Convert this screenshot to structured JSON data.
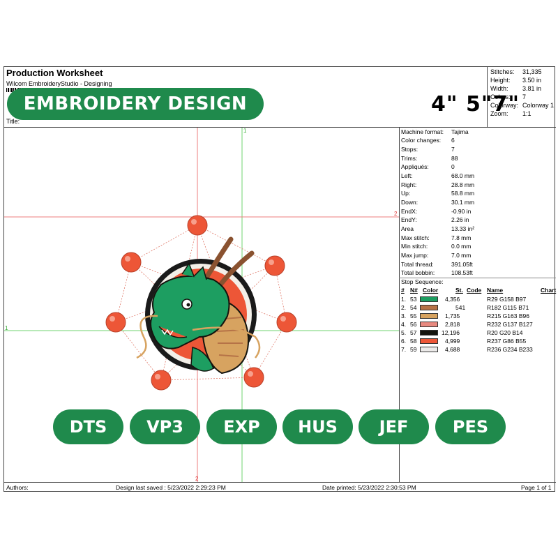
{
  "header": {
    "title": "Production Worksheet",
    "subtitle": "Wilcom EmbroideryStudio - Designing",
    "title_label": "Title:"
  },
  "banner": {
    "text": "EMBROIDERY DESIGN",
    "sizes": "4\" 5\"7\"",
    "color": "#1f8a4c"
  },
  "stats": [
    {
      "label": "Stitches:",
      "value": "31,335"
    },
    {
      "label": "Height:",
      "value": "3.50 in"
    },
    {
      "label": "Width:",
      "value": "3.81 in"
    },
    {
      "label": "Colors:",
      "value": "7"
    },
    {
      "label": "Colorway:",
      "value": "Colorway 1"
    },
    {
      "label": "Zoom:",
      "value": "1:1"
    }
  ],
  "machine_info": [
    {
      "label": "Machine format:",
      "value": "Tajima"
    },
    {
      "label": "Color changes:",
      "value": "6"
    },
    {
      "label": "Stops:",
      "value": "7"
    },
    {
      "label": "Trims:",
      "value": "88"
    },
    {
      "label": "Appliqués:",
      "value": "0"
    },
    {
      "label": "Left:",
      "value": "68.0 mm"
    },
    {
      "label": "Right:",
      "value": "28.8 mm"
    },
    {
      "label": "Up:",
      "value": "58.8 mm"
    },
    {
      "label": "Down:",
      "value": "30.1 mm"
    },
    {
      "label": "EndX:",
      "value": "-0.90 in"
    },
    {
      "label": "EndY:",
      "value": "2.26 in"
    },
    {
      "label": "Area",
      "value": "13.33 in²"
    },
    {
      "label": "Max stitch:",
      "value": "7.8 mm"
    },
    {
      "label": "Min stitch:",
      "value": "0.0 mm"
    },
    {
      "label": "Max jump:",
      "value": "7.0 mm"
    },
    {
      "label": "Total thread:",
      "value": "391.05ft"
    },
    {
      "label": "Total bobbin:",
      "value": "108.53ft"
    }
  ],
  "stop_sequence": {
    "title": "Stop Sequence:",
    "headers": {
      "num": "#",
      "n": "N#",
      "color": "Color",
      "st": "St.",
      "code": "Code",
      "name": "Name",
      "chart": "Chart"
    },
    "rows": [
      {
        "idx": "1.",
        "n": "53",
        "color": "#1d9e61",
        "st": "4,356",
        "name": "R29 G158 B97"
      },
      {
        "idx": "2.",
        "n": "54",
        "color": "#b67347",
        "st": "541",
        "name": "R182 G115 B71"
      },
      {
        "idx": "3.",
        "n": "55",
        "color": "#d7a360",
        "st": "1,735",
        "name": "R215 G163 B96"
      },
      {
        "idx": "4.",
        "n": "56",
        "color": "#e8897f",
        "st": "2,818",
        "name": "R232 G137 B127"
      },
      {
        "idx": "5.",
        "n": "57",
        "color": "#14140e",
        "st": "12,196",
        "name": "R20 G20 B14"
      },
      {
        "idx": "6.",
        "n": "58",
        "color": "#ed5637",
        "st": "4,999",
        "name": "R237 G86 B55"
      },
      {
        "idx": "7.",
        "n": "59",
        "color": "#eceae9",
        "st": "4,688",
        "name": "R236 G234 B233"
      }
    ]
  },
  "guides": {
    "label_1": "1",
    "label_2": "2"
  },
  "formats": [
    "DTS",
    "VP3",
    "EXP",
    "HUS",
    "JEF",
    "PES"
  ],
  "footer": {
    "authors": "Authors:",
    "saved": "Design last saved : 5/23/2022 2:29:23 PM",
    "printed": "Date printed: 5/23/2022 2:30:53 PM",
    "page": "Page 1 of 1"
  }
}
